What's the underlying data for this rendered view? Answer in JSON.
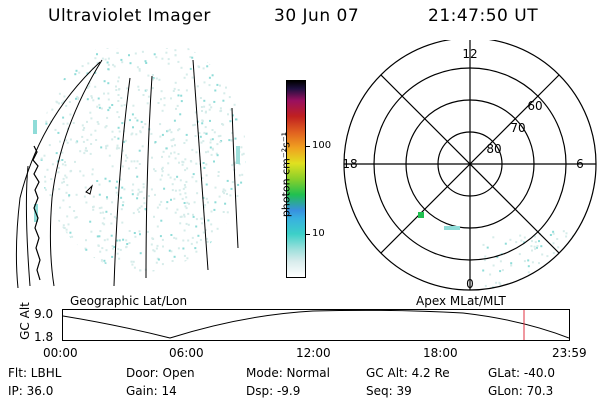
{
  "header": {
    "title": "Ultraviolet Imager",
    "date": "30 Jun 07",
    "time": "21:47:50 UT"
  },
  "colorbar": {
    "unit_label": "photon cm⁻²s⁻¹",
    "ticks": [
      "100",
      "10"
    ]
  },
  "polar": {
    "mlt_top": "12",
    "mlt_left": "18",
    "mlt_right": "6",
    "mlt_bottom": "0",
    "lat_60": "60",
    "lat_70": "70",
    "lat_80": "80"
  },
  "labels": {
    "geographic": "Geographic Lat/Lon",
    "apex": "Apex MLat/MLT",
    "gc_alt_axis": "GC Alt"
  },
  "altitude_plot": {
    "y_ticks": [
      "9.0",
      "1.8"
    ],
    "x_ticks": [
      "00:00",
      "06:00",
      "12:00",
      "18:00",
      "23:59"
    ]
  },
  "info": {
    "filter": "Flt: LBHL",
    "door": "Door: Open",
    "mode": "Mode: Normal",
    "gc_alt": "GC Alt: 4.2 Re",
    "glat": "GLat: -40.0",
    "ip": "IP: 36.0",
    "gain": "Gain: 14",
    "dsp": "Dsp:   -9.9",
    "seq": "Seq: 39",
    "glon": "GLon:  70.3"
  },
  "colors": {
    "emission_light": "#d6ecea",
    "emission_mid": "#8fdcd8",
    "emission_green": "#20c050",
    "marker_red": "#e03040"
  }
}
